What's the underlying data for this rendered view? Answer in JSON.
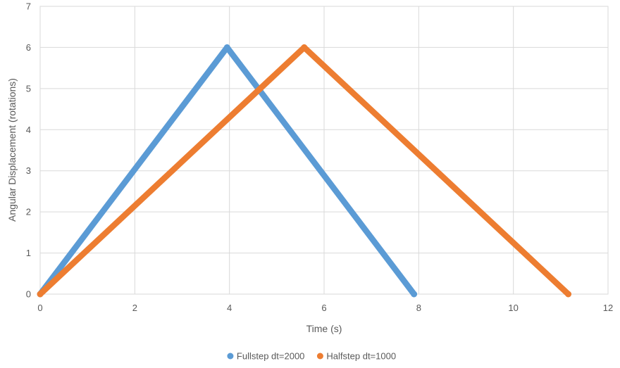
{
  "chart_data": {
    "type": "scatter",
    "xlabel": "Time (s)",
    "ylabel": "Angular Displacement (rotations)",
    "xlim": [
      0,
      12
    ],
    "ylim": [
      0,
      7
    ],
    "x_ticks": [
      0,
      2,
      4,
      6,
      8,
      10,
      12
    ],
    "y_ticks": [
      0,
      1,
      2,
      3,
      4,
      5,
      6,
      7
    ],
    "grid": true,
    "legend_position": "bottom",
    "series": [
      {
        "name": "Fullstep dt=2000",
        "color": "#5B9BD5",
        "points": [
          [
            0,
            0
          ],
          [
            3.95,
            6
          ],
          [
            7.9,
            0
          ]
        ]
      },
      {
        "name": "Halfstep dt=1000",
        "color": "#ED7D31",
        "points": [
          [
            0,
            0
          ],
          [
            5.58,
            6
          ],
          [
            11.16,
            0
          ]
        ]
      }
    ]
  }
}
